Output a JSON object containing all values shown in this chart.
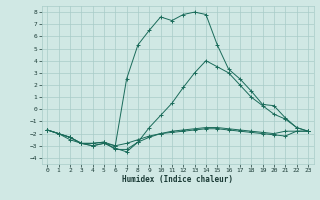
{
  "xlabel": "Humidex (Indice chaleur)",
  "bg_color": "#d0e8e4",
  "grid_color": "#a8ccc8",
  "line_color": "#1a6b5a",
  "xlim": [
    -0.5,
    23.5
  ],
  "ylim": [
    -4.5,
    8.5
  ],
  "line1_x": [
    0,
    1,
    2,
    3,
    4,
    5,
    6,
    7,
    8,
    9,
    10,
    11,
    12,
    13,
    14,
    15,
    16,
    17,
    18,
    19,
    20,
    21,
    22,
    23
  ],
  "line1_y": [
    -1.7,
    -2.0,
    -2.3,
    -2.8,
    -2.8,
    -2.7,
    -3.0,
    -2.8,
    -2.5,
    -2.2,
    -2.0,
    -1.9,
    -1.8,
    -1.7,
    -1.6,
    -1.6,
    -1.7,
    -1.8,
    -1.9,
    -2.0,
    -2.1,
    -2.2,
    -1.8,
    -1.8
  ],
  "line2_x": [
    0,
    1,
    2,
    3,
    4,
    5,
    6,
    7,
    8,
    9,
    10,
    11,
    12,
    13,
    14,
    15,
    16,
    17,
    18,
    19,
    20,
    21,
    22,
    23
  ],
  "line2_y": [
    -1.7,
    -2.0,
    -2.3,
    -2.8,
    -2.8,
    -2.7,
    -3.3,
    -3.3,
    -2.7,
    -2.3,
    -2.0,
    -1.8,
    -1.7,
    -1.6,
    -1.5,
    -1.5,
    -1.6,
    -1.7,
    -1.8,
    -1.9,
    -2.0,
    -1.8,
    -1.8,
    -1.8
  ],
  "line3_x": [
    0,
    1,
    2,
    3,
    4,
    5,
    6,
    7,
    8,
    9,
    10,
    11,
    12,
    13,
    14,
    15,
    16,
    17,
    18,
    19,
    20,
    21,
    22,
    23
  ],
  "line3_y": [
    -1.7,
    -2.0,
    -2.5,
    -2.8,
    -3.0,
    -2.8,
    -3.0,
    2.5,
    5.3,
    6.5,
    7.6,
    7.3,
    7.8,
    8.0,
    7.8,
    5.3,
    3.3,
    2.5,
    1.5,
    0.4,
    0.3,
    -0.7,
    -1.5,
    -1.8
  ],
  "line4_x": [
    0,
    1,
    2,
    3,
    4,
    5,
    6,
    7,
    8,
    9,
    10,
    11,
    12,
    13,
    14,
    15,
    16,
    17,
    18,
    19,
    20,
    21,
    22,
    23
  ],
  "line4_y": [
    -1.7,
    -2.0,
    -2.3,
    -2.8,
    -3.0,
    -2.8,
    -3.2,
    -3.5,
    -2.7,
    -1.5,
    -0.5,
    0.5,
    1.8,
    3.0,
    4.0,
    3.5,
    3.0,
    2.0,
    1.0,
    0.3,
    -0.4,
    -0.8,
    -1.5,
    -1.8
  ]
}
